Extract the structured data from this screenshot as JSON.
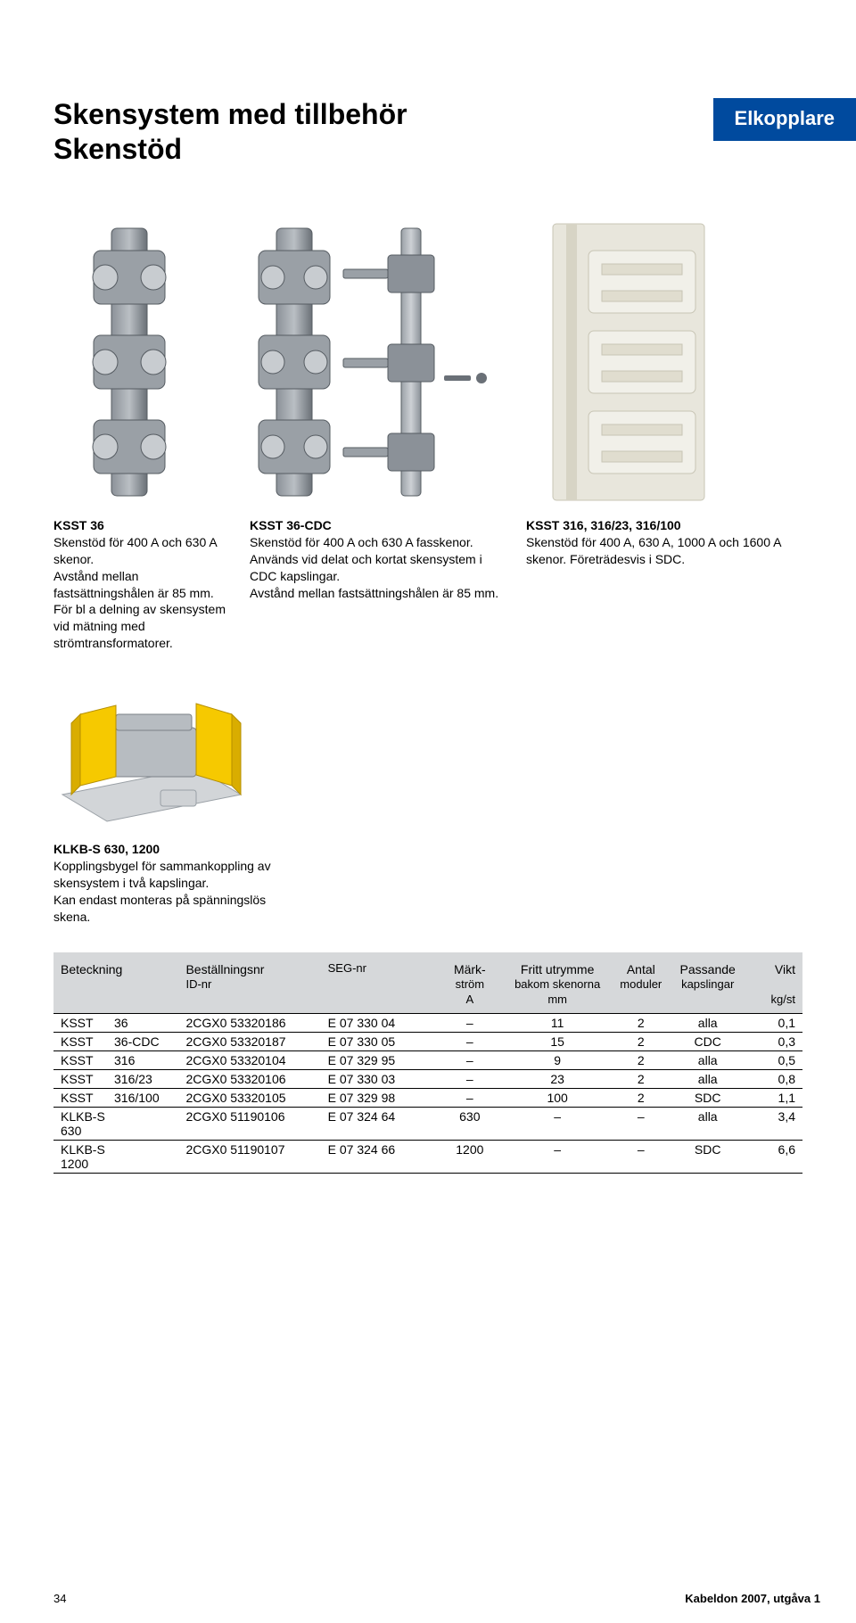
{
  "badge": "Elkopplare",
  "title": "Skensystem med tillbehör",
  "subtitle": "Skenstöd",
  "figures_top": [
    {
      "title": "KSST 36",
      "body": "Skenstöd för 400 A och 630 A skenor.\n  Avstånd mellan fastsättningshålen är 85 mm.\n  För bl a delning av skensystem vid mätning med strömtransformatorer."
    },
    {
      "title": "KSST 36-CDC",
      "body": "Skenstöd för 400 A och 630 A fasskenor.\n  Används vid delat och kortat skensystem i CDC kapslingar.\n  Avstånd mellan fastsättningshålen är 85 mm."
    },
    {
      "title": "KSST 316, 316/23, 316/100",
      "body": "Skenstöd för 400 A, 630 A, 1000 A och 1600 A skenor. Företrädesvis i SDC."
    }
  ],
  "figures_mid": [
    {
      "title": "KLKB-S 630, 1200",
      "body": "Kopplingsbygel för sammankoppling av skensystem i två kapslingar.\n  Kan endast monteras på spänningslös skena."
    }
  ],
  "table": {
    "header_bg": "#d6d8da",
    "columns": [
      {
        "label": "Beteckning",
        "sub1": "",
        "sub2": ""
      },
      {
        "label": "Beställningsnr",
        "sub1": "ID-nr",
        "sub2": ""
      },
      {
        "label": "",
        "sub1": "SEG-nr",
        "sub2": ""
      },
      {
        "label": "Märk-",
        "sub1": "ström",
        "sub2": "A"
      },
      {
        "label": "Fritt utrymme",
        "sub1": "bakom skenorna",
        "sub2": "mm"
      },
      {
        "label": "Antal",
        "sub1": "moduler",
        "sub2": ""
      },
      {
        "label": "Passande",
        "sub1": "kapslingar",
        "sub2": ""
      },
      {
        "label": "Vikt",
        "sub1": "",
        "sub2": "kg/st"
      }
    ],
    "rows": [
      {
        "b0": "KSST",
        "b1": "36",
        "id": "2CGX0 53320186",
        "seg": "E 07 330 04",
        "mark": "–",
        "fritt": "11",
        "antal": "2",
        "pass": "alla",
        "vikt": "0,1"
      },
      {
        "b0": "KSST",
        "b1": "36-CDC",
        "id": "2CGX0 53320187",
        "seg": "E 07 330 05",
        "mark": "–",
        "fritt": "15",
        "antal": "2",
        "pass": "CDC",
        "vikt": "0,3"
      },
      {
        "b0": "KSST",
        "b1": "316",
        "id": "2CGX0 53320104",
        "seg": "E 07 329 95",
        "mark": "–",
        "fritt": "9",
        "antal": "2",
        "pass": "alla",
        "vikt": "0,5"
      },
      {
        "b0": "KSST",
        "b1": "316/23",
        "id": "2CGX0 53320106",
        "seg": "E 07 330 03",
        "mark": "–",
        "fritt": "23",
        "antal": "2",
        "pass": "alla",
        "vikt": "0,8"
      },
      {
        "b0": "KSST",
        "b1": "316/100",
        "id": "2CGX0 53320105",
        "seg": "E 07 329 98",
        "mark": "–",
        "fritt": "100",
        "antal": "2",
        "pass": "SDC",
        "vikt": "1,1"
      },
      {
        "b0": "KLKB-S 630",
        "b1": "",
        "id": "2CGX0 51190106",
        "seg": "E 07 324 64",
        "mark": "630",
        "fritt": "–",
        "antal": "–",
        "pass": "alla",
        "vikt": "3,4"
      },
      {
        "b0": "KLKB-S 1200",
        "b1": "",
        "id": "2CGX0 51190107",
        "seg": "E 07 324 66",
        "mark": "1200",
        "fritt": "–",
        "antal": "–",
        "pass": "SDC",
        "vikt": "6,6"
      }
    ]
  },
  "footer": {
    "page": "34",
    "doc": "Kabeldon 2007, utgåva 1"
  },
  "colors": {
    "badge_bg": "#004a9e",
    "badge_fg": "#ffffff",
    "text": "#000000",
    "fig_gray_dark": "#6a7077",
    "fig_gray_mid": "#9aa0a6",
    "fig_gray_light": "#c8ccd0",
    "fig_cream": "#e8e6dc",
    "fig_yellow": "#f6c900",
    "fig_yellow_dark": "#d9ad00"
  }
}
